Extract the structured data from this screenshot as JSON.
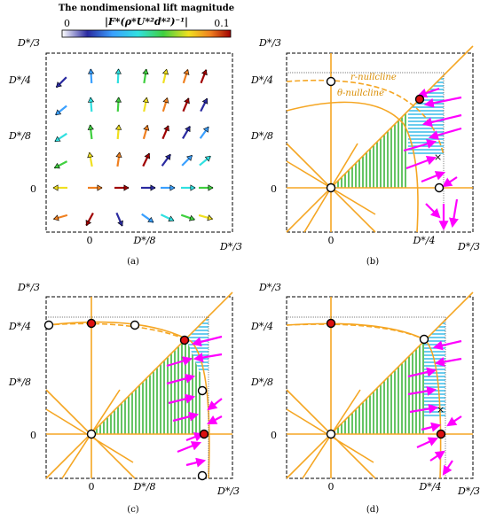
{
  "colorbar": {
    "title": "The nondimensional lift magnitude",
    "formula": "|F*(ρ*U*²d*²)⁻¹|",
    "min_label": "0",
    "max_label": "0.1"
  },
  "ticks": {
    "d3": "D*/3",
    "d4": "D*/4",
    "d8": "D*/8",
    "zero": "0"
  },
  "nullclines": {
    "r": "r-nullcline",
    "theta": "θ-nullcline"
  },
  "captions": [
    "(a)",
    "(b)",
    "(c)",
    "(d)"
  ],
  "colors": {
    "orange": "#f5a623",
    "magenta": "#ff00ff",
    "green": "#22aa22",
    "cyan": "#29b6e6",
    "red": "#dd1111"
  }
}
